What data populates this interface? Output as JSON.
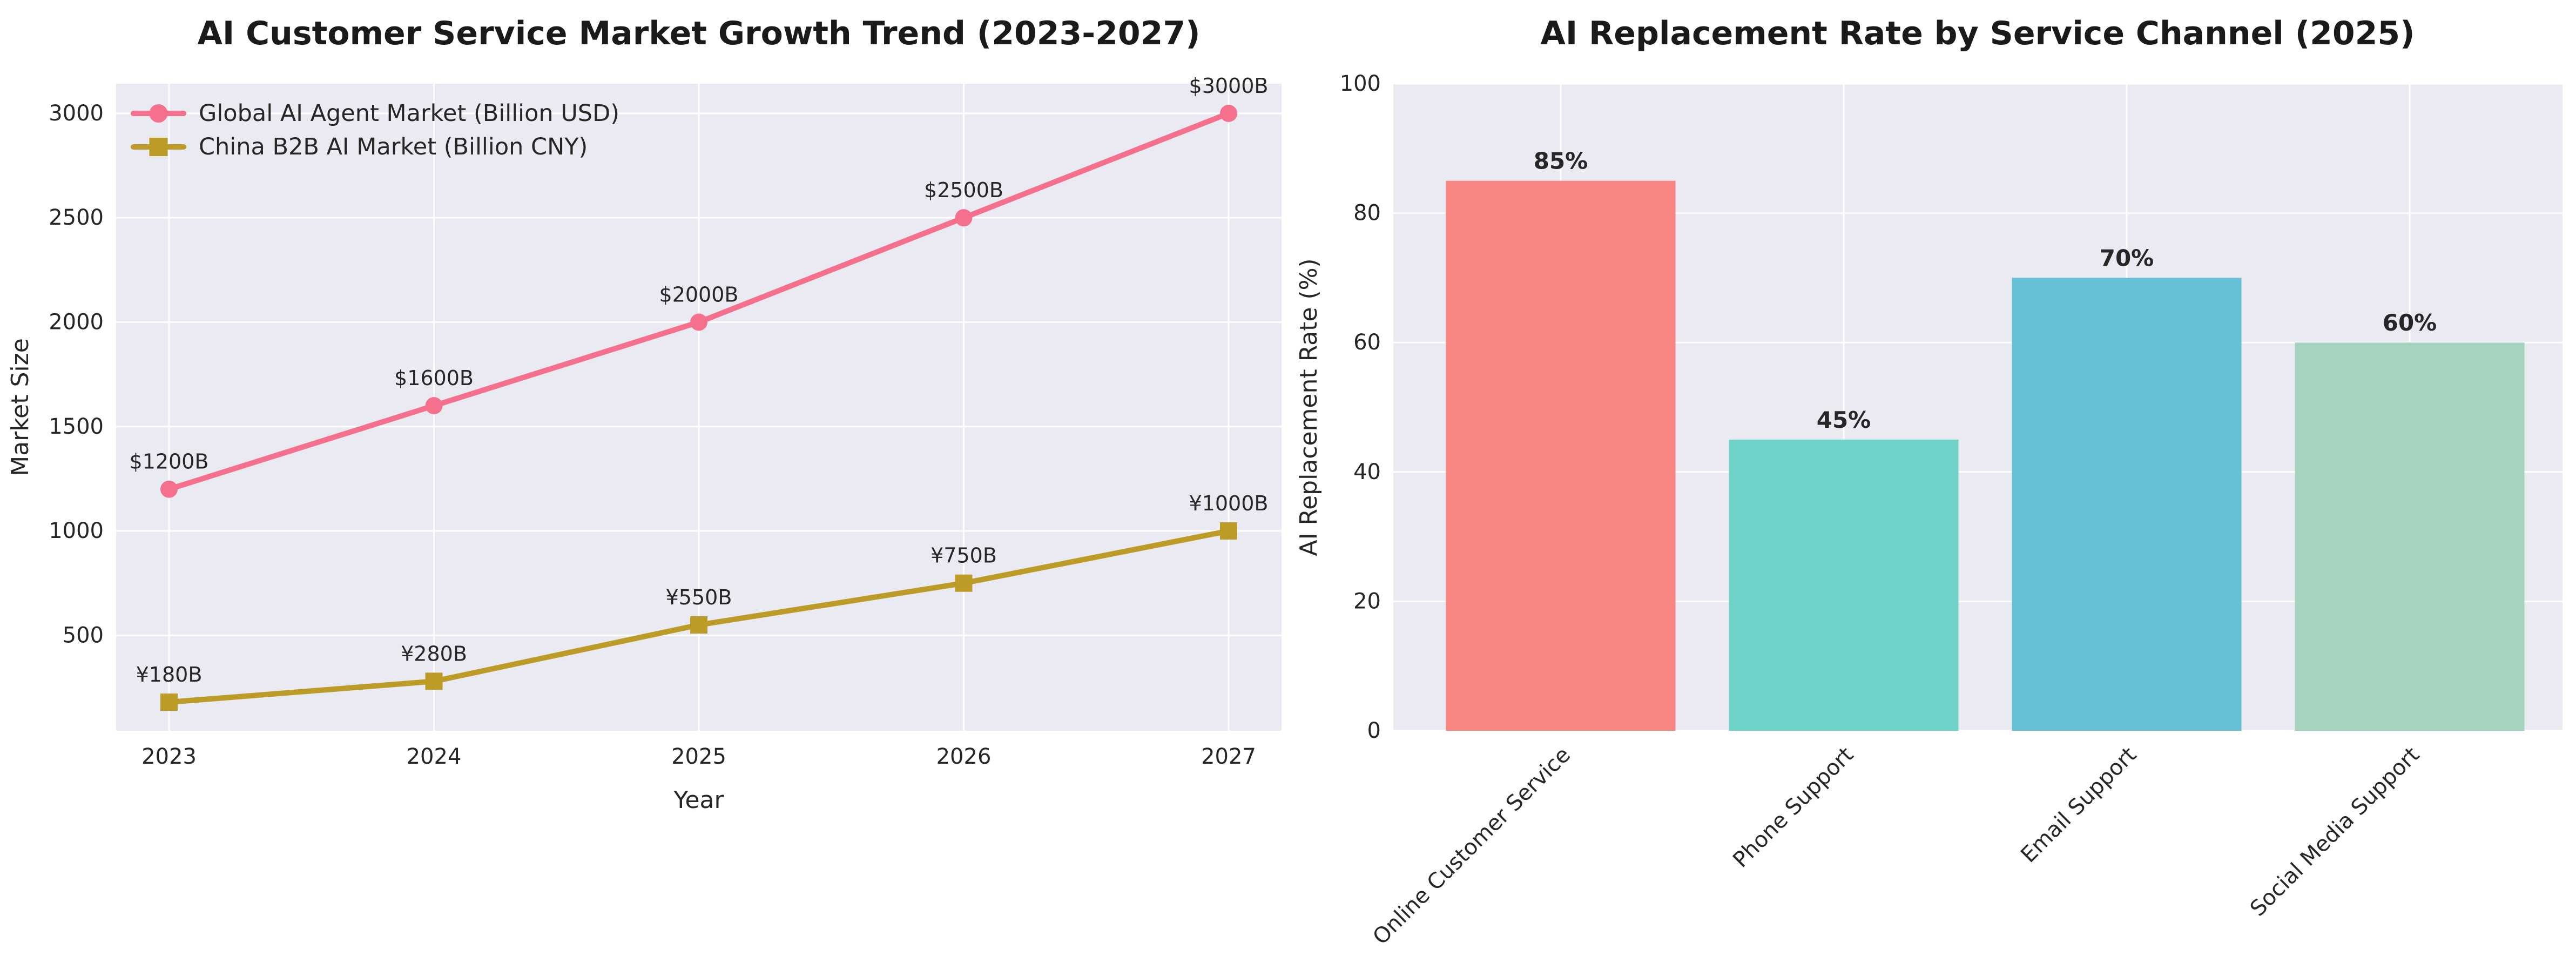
{
  "figure": {
    "background": "#ffffff",
    "plot_background": "#EAEAF2",
    "grid_color": "#ffffff",
    "text_color": "#262626"
  },
  "chart_data": [
    {
      "type": "line",
      "title": "AI Customer Service Market Growth Trend (2023-2027)",
      "xlabel": "Year",
      "ylabel": "Market Size",
      "x": [
        2023,
        2024,
        2025,
        2026,
        2027
      ],
      "x_tick_labels": [
        "2023",
        "2024",
        "2025",
        "2026",
        "2027"
      ],
      "y_ticks": [
        500,
        1000,
        1500,
        2000,
        2500,
        3000
      ],
      "y_tick_labels": [
        "500",
        "1000",
        "1500",
        "2000",
        "2500",
        "3000"
      ],
      "ylim": [
        43,
        3142
      ],
      "grid": true,
      "legend_position": "upper left",
      "series": [
        {
          "name": "Global AI Agent Market (Billion USD)",
          "color": "#F5708D",
          "marker": "circle",
          "values": [
            1200,
            1600,
            2000,
            2500,
            3000
          ],
          "point_labels": [
            "$1200B",
            "$1600B",
            "$2000B",
            "$2500B",
            "$3000B"
          ]
        },
        {
          "name": "China B2B AI Market (Billion CNY)",
          "color": "#BC9C27",
          "marker": "square",
          "values": [
            180,
            280,
            550,
            750,
            1000
          ],
          "point_labels": [
            "¥180B",
            "¥280B",
            "¥550B",
            "¥750B",
            "¥1000B"
          ]
        }
      ]
    },
    {
      "type": "bar",
      "title": "AI Replacement Rate by Service Channel (2025)",
      "xlabel": "",
      "ylabel": "AI Replacement Rate (%)",
      "categories": [
        "Online Customer Service",
        "Phone Support",
        "Email Support",
        "Social Media Support"
      ],
      "values": [
        85,
        45,
        70,
        60
      ],
      "value_labels": [
        "85%",
        "45%",
        "70%",
        "60%"
      ],
      "bar_colors": [
        "#F98581",
        "#6FD2C8",
        "#66C0D6",
        "#A6D3BE"
      ],
      "y_ticks": [
        0,
        20,
        40,
        60,
        80,
        100
      ],
      "y_tick_labels": [
        "0",
        "20",
        "40",
        "60",
        "80",
        "100"
      ],
      "ylim": [
        0,
        100
      ],
      "grid": true,
      "x_tick_rotation_deg": 45
    }
  ]
}
